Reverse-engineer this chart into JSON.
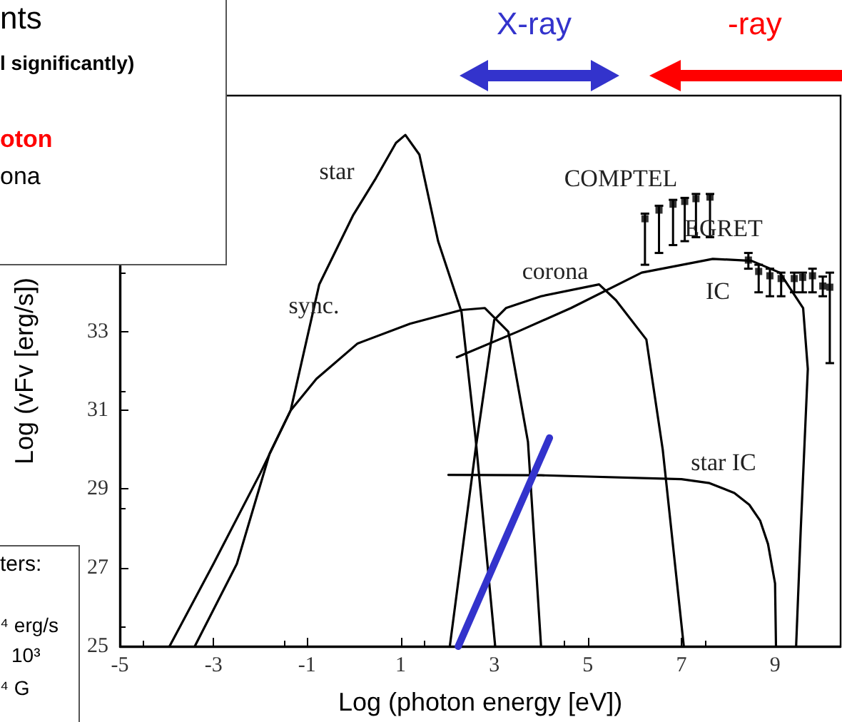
{
  "chart_data": {
    "type": "line",
    "xlabel": "Log (photon energy [eV])",
    "ylabel": "Log (vFv [erg/s])",
    "xlim": [
      -5,
      10.4
    ],
    "ylim": [
      25,
      39
    ],
    "xticks": [
      -5,
      -3,
      -1,
      1,
      3,
      5,
      7,
      9
    ],
    "yticks": [
      25,
      27,
      29,
      31,
      33
    ],
    "annotations": [
      "nts",
      "l significantly)",
      "oton",
      "ona",
      "ters:",
      "⁴ erg/s",
      "10³",
      "⁴ G",
      "X-ray",
      "-ray",
      "star",
      "sync.",
      "corona",
      "COMPTEL",
      "EGRET",
      "IC",
      "star IC"
    ],
    "series": [
      {
        "color": "#000000",
        "x": [
          -3.94,
          -3,
          -2,
          -1.35,
          -0.74,
          -0.02,
          0.47,
          0.9,
          1.1,
          1.4,
          1.8,
          2.3,
          2.6,
          3.02
        ],
        "values": [
          25,
          27.1,
          29.4,
          31,
          34.2,
          35.95,
          36.9,
          37.8,
          38.0,
          37.5,
          35.3,
          33.5,
          30.3,
          25
        ]
      },
      {
        "color": "#000000",
        "x": [
          -3.4,
          -2.5,
          -1.8,
          -1.35,
          -0.8,
          0.08,
          1.2,
          2.3,
          2.8,
          3.3,
          3.72,
          4.0
        ],
        "values": [
          25,
          27.1,
          29.9,
          31,
          31.8,
          32.7,
          33.2,
          33.55,
          33.6,
          33.0,
          30.2,
          25
        ]
      },
      {
        "color": "#000000",
        "x": [
          2.05,
          2.6,
          3.0,
          3.25,
          4.0,
          5.24,
          5.6,
          6.25,
          6.6,
          7.05
        ],
        "values": [
          25,
          30,
          33.3,
          33.6,
          33.9,
          34.2,
          33.8,
          32.8,
          30,
          25
        ]
      },
      {
        "color": "#000000",
        "x": [
          2.2,
          3.5,
          4.64,
          6.15,
          7.67,
          8.5,
          9.1,
          9.6,
          9.7,
          9.55,
          9.45
        ],
        "values": [
          32.35,
          33.0,
          33.6,
          34.5,
          34.85,
          34.8,
          34.5,
          33.6,
          32.05,
          28,
          25
        ]
      },
      {
        "color": "#000000",
        "x": [
          2.02,
          4,
          7.0,
          7.6,
          8.13,
          8.45,
          8.68,
          8.85,
          9.0,
          9.02
        ],
        "values": [
          29.36,
          29.35,
          29.25,
          29.15,
          28.9,
          28.6,
          28.2,
          27.6,
          26.6,
          25
        ]
      },
      {
        "type": "scatter",
        "marker": "square",
        "color": "#000000",
        "x": [
          6.22,
          6.52,
          6.82,
          7.07,
          7.31,
          7.61
        ],
        "values": [
          35.87,
          36.09,
          36.24,
          36.31,
          36.38,
          36.42
        ],
        "errors": [
          [
            34.7,
            36.0
          ],
          [
            35.0,
            36.2
          ],
          [
            35.2,
            36.35
          ],
          [
            35.3,
            36.4
          ],
          [
            35.4,
            36.5
          ],
          [
            35.4,
            36.5
          ]
        ]
      },
      {
        "type": "scatter",
        "marker": "square",
        "color": "#000000",
        "x": [
          8.43,
          8.65,
          8.89,
          9.13,
          9.41,
          9.59,
          9.8,
          10.02,
          10.17
        ],
        "values": [
          34.82,
          34.53,
          34.42,
          34.35,
          34.35,
          34.38,
          34.42,
          34.16,
          34.13
        ],
        "errors": [
          [
            34.6,
            35.0
          ],
          [
            34.0,
            34.7
          ],
          [
            33.9,
            34.6
          ],
          [
            33.9,
            34.5
          ],
          [
            34.0,
            34.5
          ],
          [
            34.0,
            34.5
          ],
          [
            34.0,
            34.6
          ],
          [
            33.9,
            34.4
          ],
          [
            32.2,
            34.5
          ]
        ]
      },
      {
        "color": "#3333cc",
        "x": [
          2.23,
          4.18
        ],
        "values": [
          25,
          30.3
        ]
      }
    ]
  }
}
